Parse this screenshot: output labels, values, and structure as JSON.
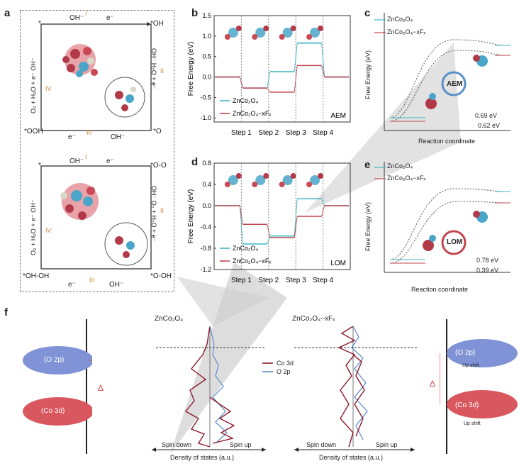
{
  "panels": {
    "a": {
      "label": "a",
      "aem": {
        "start": "*",
        "oh_intermediate": "*OH",
        "o_intermediate": "*O",
        "ooh_intermediate": "*OOH",
        "oh_minus": "OH⁻",
        "e_minus": "e⁻",
        "step_I": "I",
        "step_II": "II",
        "step_III": "III",
        "step_IV": "IV",
        "right_side": "OH⁻  H₂O + e⁻",
        "left_side": "O₂ + H₂O + e⁻  OH⁻"
      },
      "lom": {
        "start": "*",
        "oo_intermediate": "*O-O",
        "ooh_oh": "*O-OH",
        "oh_oh": "*OH-OH",
        "oh_minus": "OH⁻",
        "e_minus": "e⁻",
        "step_I": "I",
        "step_II": "II",
        "step_III": "III",
        "step_IV": "IV",
        "right_side": "OH⁻  O₂ + H₂O + e⁻",
        "left_side": "O₂ + H₂O + e⁻  OH⁻"
      }
    },
    "b": {
      "label": "b"
    },
    "c": {
      "label": "c",
      "legend": [
        "ZnCo₂O₄",
        "ZnCo₂O₄−xFₓ"
      ],
      "mechanism": "AEM",
      "ylabel": "Free Energy (eV)",
      "xlabel": "Reaction coordinate",
      "values": [
        "0.69 eV",
        "0.62 eV"
      ]
    },
    "d": {
      "label": "d"
    },
    "e": {
      "label": "e",
      "legend": [
        "ZnCo₂O₄",
        "ZnCo₂O₄−xFₓ"
      ],
      "mechanism": "LOM",
      "ylabel": "Free Energy (eV)",
      "xlabel": "Reaction coordinate",
      "values": [
        "0.78 eV",
        "0.39 eV"
      ]
    },
    "f": {
      "label": "f",
      "left_schematic": {
        "upper": "(O 2p)",
        "lower": "(Co 3d)",
        "delta": "Δ"
      },
      "right_schematic": {
        "upper": "(O 2p)",
        "lower": "(Co 3d)",
        "delta": "Δ",
        "shift": "Up shift"
      },
      "dos1_title": "ZnCo₂O₄",
      "dos2_title": "ZnCo₂O₄−xFₓ",
      "legend": [
        "Co 3d",
        "O 2p"
      ],
      "spin_down": "Spin down",
      "spin_up": "Spin up",
      "xlabel": "Density of states (a.u.)"
    }
  },
  "chart_data": [
    {
      "id": "b",
      "type": "line",
      "categories": [
        "Step 1",
        "Step 2",
        "Step 3",
        "Step 4"
      ],
      "ylabel": "Free Energy (eV)",
      "ylim": [
        -1.1,
        1.5
      ],
      "yticks": [
        "1.5",
        "1.0",
        "0.5",
        "0.0",
        "-0.5",
        "-1.0"
      ],
      "annotation": "AEM",
      "series": [
        {
          "name": "ZnCo₂O₄",
          "color": "#3fb6c4",
          "levels": [
            0.0,
            -0.27,
            0.13,
            0.83,
            0.0
          ]
        },
        {
          "name": "ZnCo₂O₄−xFₓ",
          "color": "#c0474f",
          "levels": [
            0.0,
            -0.27,
            -0.37,
            0.28,
            0.0
          ]
        }
      ]
    },
    {
      "id": "d",
      "type": "line",
      "categories": [
        "Step 1",
        "Step 2",
        "Step 3",
        "Step 4"
      ],
      "ylabel": "Free Energy (eV)",
      "ylim": [
        -1.2,
        0.8
      ],
      "yticks": [
        "0.8",
        "0.4",
        "0.0",
        "-0.4",
        "-0.8",
        "-1.2"
      ],
      "annotation": "LOM",
      "series": [
        {
          "name": "ZnCo₂O₄",
          "color": "#3fb6c4",
          "levels": [
            0.0,
            -0.72,
            -0.57,
            0.13,
            0.0
          ]
        },
        {
          "name": "ZnCo₂O₄−xFₓ",
          "color": "#c0474f",
          "levels": [
            0.0,
            -0.35,
            -0.6,
            -0.2,
            0.0
          ]
        }
      ]
    }
  ],
  "colors": {
    "teal": "#3fb6c4",
    "red": "#c0474f",
    "blue_band": "#7f93d6",
    "red_band": "#d9575f",
    "dark_red": "#8b1a2a",
    "grey_arrow": "#cfcfcf",
    "orange": "#d08a3a"
  }
}
